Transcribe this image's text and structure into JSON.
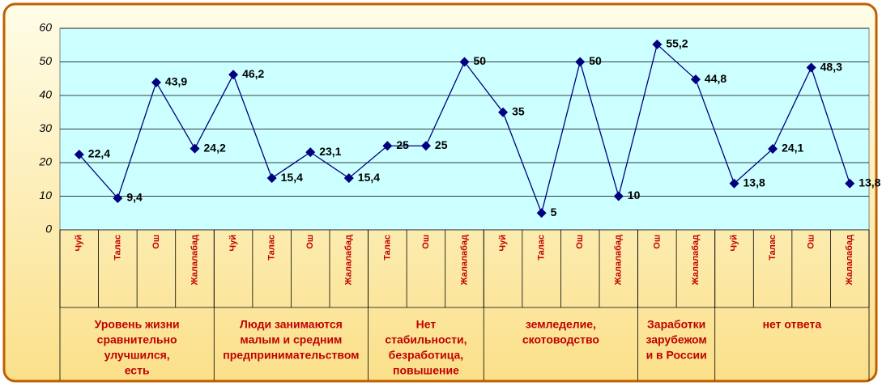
{
  "chart_data": {
    "type": "line",
    "categories": [
      "Чуй",
      "Талас",
      "Ош",
      "Жалалабад",
      "Чуй",
      "Талас",
      "Ош",
      "Жалалабад",
      "Талас",
      "Ош",
      "Жалалабад",
      "Чуй",
      "Талас",
      "Ош",
      "Жалалабад",
      "Ош",
      "Жалалабад",
      "Чуй",
      "Талас",
      "Ош",
      "Жалалабад"
    ],
    "series": [
      {
        "color": "#000080",
        "values": [
          22.4,
          9.4,
          43.9,
          24.2,
          46.2,
          15.4,
          23.1,
          15.4,
          25,
          25,
          50,
          35,
          5,
          50,
          10,
          55.2,
          44.8,
          13.8,
          24.1,
          48.3,
          13.8
        ],
        "value_labels": [
          "22,4",
          "9,4",
          "43,9",
          "24,2",
          "46,2",
          "15,4",
          "23,1",
          "15,4",
          "25",
          "25",
          "50",
          "35",
          "5",
          "50",
          "10",
          "55,2",
          "44,8",
          "13,8",
          "24,1",
          "48,3",
          "13,8"
        ]
      }
    ],
    "groups": [
      {
        "lines": [
          "Уровень жизни",
          "сравнительно",
          "улучшился,",
          "есть"
        ],
        "size": 4
      },
      {
        "lines": [
          "Люди занимаются",
          "малым и средним",
          "предпринимательством"
        ],
        "size": 4
      },
      {
        "lines": [
          "Нет",
          "стабильности,",
          "безработица,",
          "повышение"
        ],
        "size": 3
      },
      {
        "lines": [
          "земледелие,",
          "скотоводство"
        ],
        "size": 4
      },
      {
        "lines": [
          "Заработки",
          "зарубежом",
          "и в России"
        ],
        "size": 2
      },
      {
        "lines": [
          "нет ответа"
        ],
        "size": 4
      }
    ],
    "ylim": [
      0,
      60
    ],
    "yticks": [
      0,
      10,
      20,
      30,
      40,
      50,
      60
    ],
    "grid": true
  }
}
